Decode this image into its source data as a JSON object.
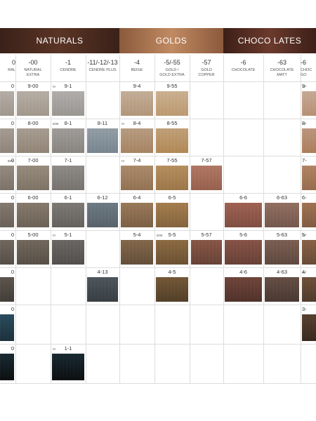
{
  "sections": [
    {
      "title": "NATURALS"
    },
    {
      "title": "GOLDS"
    },
    {
      "title": "CHOCO LATES"
    }
  ],
  "columns": [
    {
      "code": "0",
      "name": [
        "RAL"
      ]
    },
    {
      "code": "-00",
      "name": [
        "NATURAL",
        "EXTRA"
      ]
    },
    {
      "code": "-1",
      "name": [
        "CENDRE"
      ]
    },
    {
      "code": "-11/-12/-13",
      "name": [
        "CENDRE PLUS"
      ]
    },
    {
      "code": "-4",
      "name": [
        "BEIGE"
      ]
    },
    {
      "code": "-5/-55",
      "name": [
        "GOLD /",
        "GOLD EXTRA"
      ]
    },
    {
      "code": "-57",
      "name": [
        "GOLD",
        "COPPER"
      ]
    },
    {
      "code": "-6",
      "name": [
        "CHOCOLATE"
      ]
    },
    {
      "code": "-63",
      "name": [
        "CHOCOLATE",
        "MATT"
      ]
    },
    {
      "code": "-6",
      "name": [
        "CHOC",
        "GO"
      ]
    }
  ],
  "rows": [
    {
      "cells": [
        {
          "label": "0"
        },
        {
          "label": "9-00"
        },
        {
          "label": "9-1",
          "tag": "IV"
        },
        null,
        {
          "label": "9-4"
        },
        {
          "label": "9-55"
        },
        null,
        null,
        null,
        {
          "label": "9-",
          "tag": "IV"
        }
      ]
    },
    {
      "cells": [
        {
          "label": "0"
        },
        {
          "label": "8-00"
        },
        {
          "label": "8-1",
          "tag": "IDM"
        },
        {
          "label": "8-11"
        },
        {
          "label": "8-4",
          "tag": "IV"
        },
        {
          "label": "8-55"
        },
        null,
        null,
        null,
        {
          "label": "8-",
          "tag": "IV"
        }
      ]
    },
    {
      "cells": [
        {
          "label": "0",
          "tag": "IDM"
        },
        {
          "label": "7-00"
        },
        {
          "label": "7-1"
        },
        null,
        {
          "label": "7-4",
          "tag": "IV"
        },
        {
          "label": "7-55"
        },
        {
          "label": "7-57"
        },
        null,
        null,
        {
          "label": "7-"
        }
      ]
    },
    {
      "cells": [
        {
          "label": "0"
        },
        {
          "label": "6-00"
        },
        {
          "label": "6-1"
        },
        {
          "label": "6-12"
        },
        {
          "label": "6-4"
        },
        {
          "label": "6-5"
        },
        null,
        {
          "label": "6-6"
        },
        {
          "label": "6-63"
        },
        {
          "label": "6-"
        }
      ]
    },
    {
      "cells": [
        {
          "label": "0"
        },
        {
          "label": "5-00"
        },
        {
          "label": "5-1",
          "tag": "IV"
        },
        null,
        {
          "label": "5-4"
        },
        {
          "label": "5-5",
          "tag": "IDM"
        },
        {
          "label": "5-57"
        },
        {
          "label": "5-6"
        },
        {
          "label": "5-63"
        },
        {
          "label": "5-",
          "tag": "IV"
        }
      ]
    },
    {
      "cells": [
        {
          "label": "0"
        },
        null,
        null,
        {
          "label": "4-13"
        },
        null,
        {
          "label": "4-5"
        },
        null,
        {
          "label": "4-6"
        },
        {
          "label": "4-63"
        },
        {
          "label": "4-",
          "tag": "IV"
        }
      ]
    },
    {
      "cells": [
        {
          "label": "0"
        },
        null,
        null,
        null,
        null,
        null,
        null,
        null,
        null,
        {
          "label": "3-"
        }
      ]
    },
    {
      "cells": [
        {
          "label": "0"
        },
        null,
        {
          "label": "1-1",
          "tag": "IV"
        },
        null,
        null,
        null,
        null,
        null,
        null,
        null
      ]
    }
  ]
}
